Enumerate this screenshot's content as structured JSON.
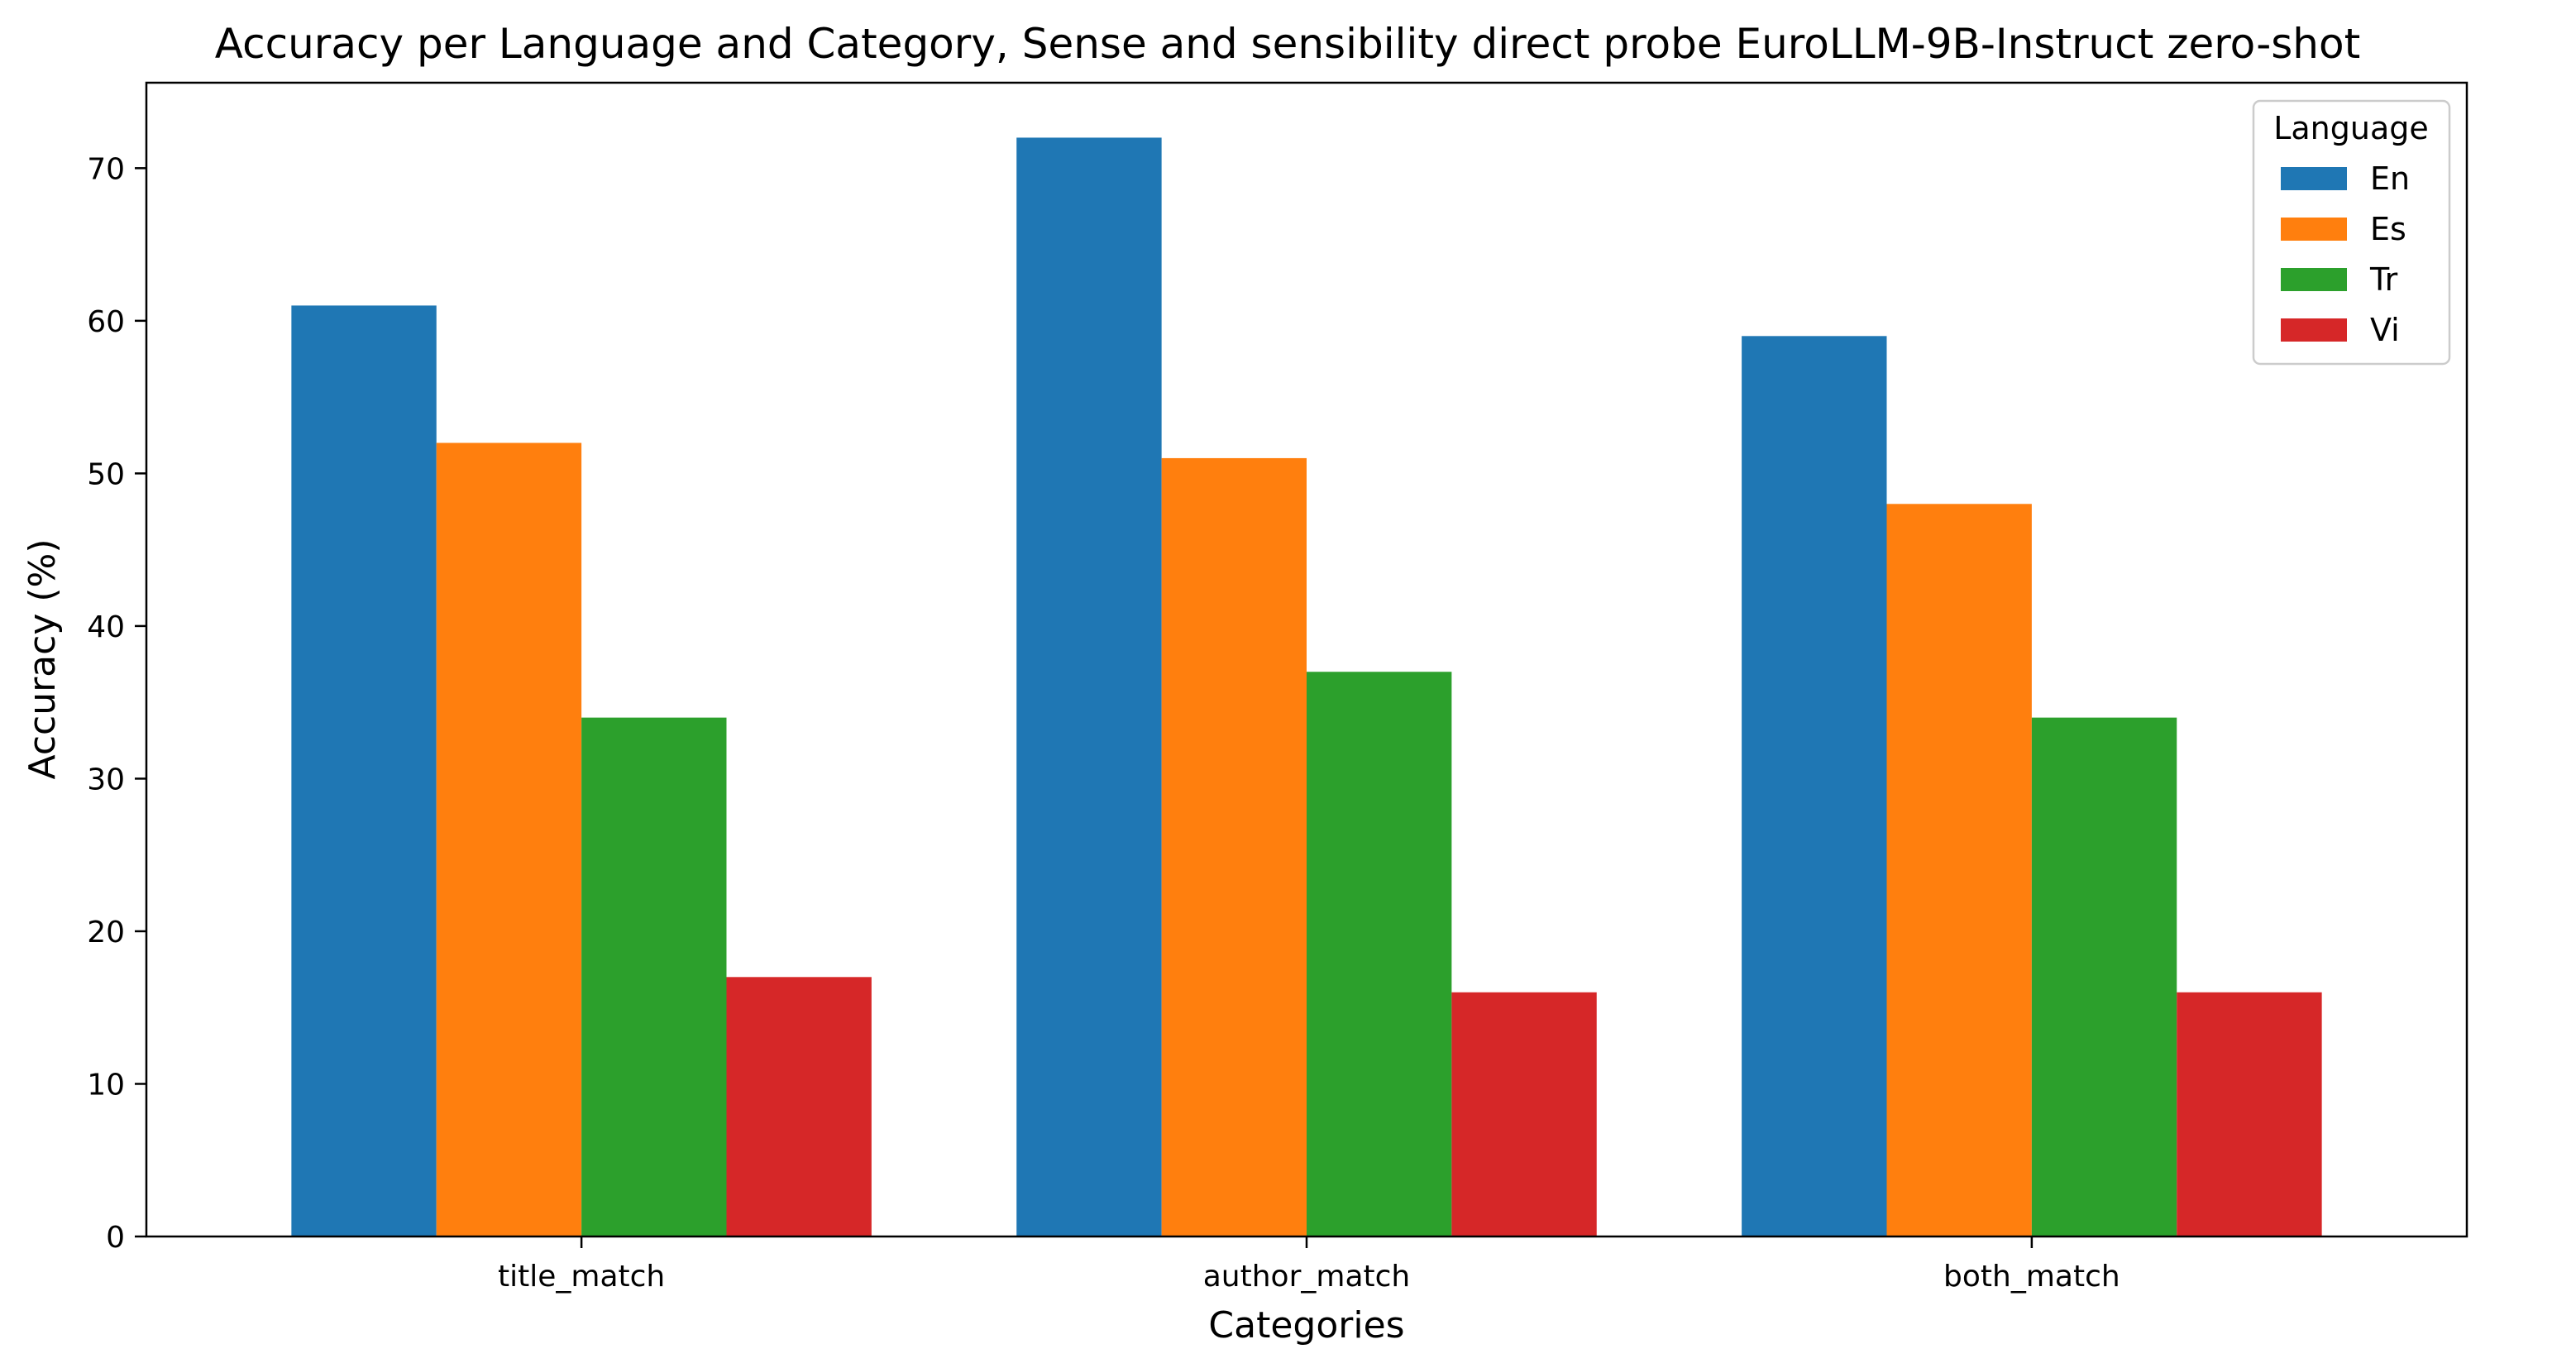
{
  "chart_data": {
    "type": "bar",
    "title": "Accuracy per Language and Category, Sense and sensibility direct probe EuroLLM-9B-Instruct zero-shot",
    "xlabel": "Categories",
    "ylabel": "Accuracy (%)",
    "categories": [
      "title_match",
      "author_match",
      "both_match"
    ],
    "series": [
      {
        "name": "En",
        "color": "#1f77b4",
        "values": [
          61,
          72,
          59
        ]
      },
      {
        "name": "Es",
        "color": "#ff7f0e",
        "values": [
          52,
          51,
          48
        ]
      },
      {
        "name": "Tr",
        "color": "#2ca02c",
        "values": [
          34,
          37,
          34
        ]
      },
      {
        "name": "Vi",
        "color": "#d62728",
        "values": [
          17,
          16,
          16
        ]
      }
    ],
    "ylim": [
      0,
      75.6
    ],
    "yticks": [
      0,
      10,
      20,
      30,
      40,
      50,
      60,
      70
    ],
    "grid": false,
    "legend": {
      "title": "Language",
      "placement": "top-right"
    }
  }
}
